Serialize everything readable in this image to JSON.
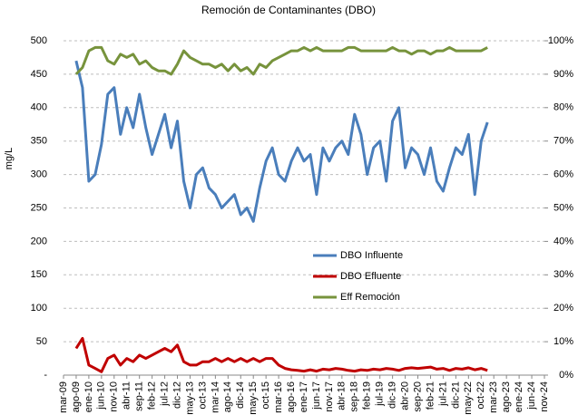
{
  "chart_data": {
    "type": "line",
    "title": "Remoción de Contaminantes (DBO)",
    "ylabel": "mg/L",
    "categories": [
      "mar-09",
      null,
      "ago-09",
      null,
      "ene-10",
      null,
      "jun-10",
      null,
      "nov-10",
      null,
      "abr-11",
      null,
      "sep-11",
      null,
      "feb-12",
      null,
      "jul-12",
      null,
      "dic-12",
      null,
      "may-13",
      null,
      "oct-13",
      null,
      "mar-14",
      null,
      "ago-14",
      null,
      "dic-14",
      null,
      "may-15",
      null,
      "oct-15",
      null,
      "mar-16",
      null,
      "ago-16",
      null,
      "ene-17",
      null,
      "jun-17",
      null,
      "nov-17",
      null,
      "abr-18",
      null,
      "sep-18",
      null,
      "feb-19",
      null,
      "jul-19",
      null,
      "dic-19",
      null,
      "abr-20",
      null,
      "sep-20",
      null,
      "feb-21",
      null,
      "jul-21",
      null,
      "dic-21",
      null,
      "may-22",
      null,
      "oct-22",
      null,
      "mar-23",
      null,
      "ago-23",
      null,
      "ene-24",
      null,
      "jun-24",
      null,
      "nov-24"
    ],
    "ylim": [
      0,
      500
    ],
    "yticks": [
      {
        "value": 0,
        "label": "-"
      },
      50,
      100,
      150,
      200,
      250,
      300,
      350,
      400,
      450,
      500
    ],
    "y2lim": [
      0,
      100
    ],
    "y2ticks": [
      {
        "value": 0,
        "label": "0%"
      },
      {
        "value": 10,
        "label": "10%"
      },
      {
        "value": 20,
        "label": "20%"
      },
      {
        "value": 30,
        "label": "30%"
      },
      {
        "value": 40,
        "label": "40%"
      },
      {
        "value": 50,
        "label": "50%"
      },
      {
        "value": 60,
        "label": "60%"
      },
      {
        "value": 70,
        "label": "70%"
      },
      {
        "value": 80,
        "label": "80%"
      },
      {
        "value": 90,
        "label": "90%"
      },
      {
        "value": 100,
        "label": "100%"
      }
    ],
    "grid": true,
    "legend": "center",
    "series": [
      {
        "name": "DBO Influente",
        "color": "#4a7ebb",
        "values": [
          null,
          null,
          470,
          430,
          290,
          300,
          345,
          420,
          430,
          360,
          400,
          370,
          420,
          370,
          330,
          360,
          390,
          340,
          380,
          290,
          250,
          300,
          310,
          280,
          270,
          250,
          260,
          270,
          240,
          250,
          230,
          280,
          320,
          340,
          300,
          290,
          320,
          340,
          320,
          330,
          270,
          340,
          320,
          340,
          350,
          330,
          390,
          360,
          300,
          340,
          350,
          290,
          380,
          400,
          310,
          340,
          330,
          300,
          340,
          290,
          275,
          310,
          340,
          330,
          360,
          270,
          350,
          378,
          null,
          null,
          null,
          null,
          null,
          null,
          null,
          null,
          null
        ]
      },
      {
        "name": "DBO Efluente",
        "color": "#c00000",
        "values": [
          null,
          null,
          40,
          55,
          15,
          10,
          5,
          25,
          30,
          15,
          25,
          20,
          30,
          25,
          30,
          35,
          40,
          35,
          45,
          20,
          15,
          15,
          20,
          20,
          25,
          20,
          25,
          20,
          25,
          20,
          25,
          20,
          25,
          25,
          15,
          10,
          8,
          7,
          6,
          8,
          6,
          9,
          8,
          10,
          9,
          7,
          6,
          8,
          7,
          9,
          8,
          10,
          9,
          7,
          10,
          11,
          10,
          11,
          12,
          9,
          10,
          7,
          10,
          9,
          11,
          8,
          10,
          7,
          null,
          null,
          null,
          null,
          null,
          null,
          null,
          null,
          null
        ]
      },
      {
        "name": "Eff Remoción",
        "color": "#77933c",
        "axis": "y2",
        "values": [
          null,
          null,
          90,
          92,
          97,
          98,
          98,
          94,
          93,
          96,
          95,
          96,
          93,
          94,
          92,
          91,
          91,
          90,
          93,
          97,
          95,
          94,
          93,
          93,
          92,
          93,
          91,
          93,
          91,
          92,
          90,
          93,
          92,
          94,
          95,
          96,
          97,
          97,
          98,
          97,
          98,
          97,
          97,
          97,
          97,
          98,
          98,
          97,
          97,
          97,
          97,
          97,
          98,
          97,
          97,
          96,
          97,
          97,
          96,
          97,
          97,
          98,
          97,
          97,
          97,
          97,
          97,
          98,
          null,
          null,
          null,
          null,
          null,
          null,
          null,
          null,
          null
        ]
      }
    ]
  }
}
